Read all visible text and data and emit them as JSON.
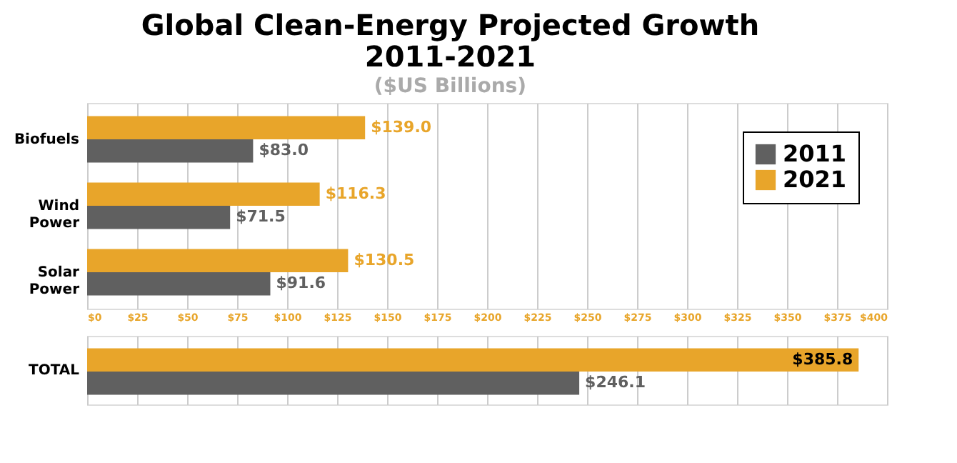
{
  "chart_data": [
    {
      "type": "bar",
      "orientation": "horizontal",
      "title": "Global Clean-Energy Projected Growth\n2011-2021",
      "subtitle": "($US Billions)",
      "categories": [
        "Biofuels",
        "Wind Power",
        "Solar Power"
      ],
      "series": [
        {
          "name": "2011",
          "color": "#606060",
          "values": [
            83.0,
            71.5,
            91.6
          ],
          "value_labels": [
            "$83.0",
            "$71.5",
            "$91.6"
          ]
        },
        {
          "name": "2021",
          "color": "#e8a52a",
          "values": [
            139.0,
            116.3,
            130.5
          ],
          "value_labels": [
            "$139.0",
            "$116.3",
            "$130.5"
          ]
        }
      ],
      "xlim": [
        0,
        400
      ],
      "xticks": [
        {
          "value": 0,
          "label": "$0"
        },
        {
          "value": 25,
          "label": "$25"
        },
        {
          "value": 50,
          "label": "$50"
        },
        {
          "value": 75,
          "label": "$75"
        },
        {
          "value": 100,
          "label": "$100"
        },
        {
          "value": 125,
          "label": "$125"
        },
        {
          "value": 150,
          "label": "$150"
        },
        {
          "value": 175,
          "label": "$175"
        },
        {
          "value": 200,
          "label": "$200"
        },
        {
          "value": 225,
          "label": "$225"
        },
        {
          "value": 250,
          "label": "$250"
        },
        {
          "value": 275,
          "label": "$275"
        },
        {
          "value": 300,
          "label": "$300"
        },
        {
          "value": 325,
          "label": "$325"
        },
        {
          "value": 350,
          "label": "$350"
        },
        {
          "value": 375,
          "label": "$375"
        },
        {
          "value": 400,
          "label": "$400"
        }
      ],
      "grid": "x",
      "legend": "top right"
    },
    {
      "type": "bar",
      "orientation": "horizontal",
      "categories": [
        "TOTAL"
      ],
      "series": [
        {
          "name": "2011",
          "color": "#606060",
          "values": [
            246.1
          ],
          "value_labels": [
            "$246.1"
          ]
        },
        {
          "name": "2021",
          "color": "#e8a52a",
          "values": [
            385.8
          ],
          "value_labels": [
            "$385.8"
          ]
        }
      ],
      "xlim": [
        0,
        400
      ],
      "xticks": [
        0,
        25,
        50,
        75,
        100,
        125,
        150,
        175,
        200,
        225,
        250,
        275,
        300,
        325,
        350,
        375,
        400
      ],
      "grid": "x",
      "legend": false,
      "tick_labels": "y"
    }
  ]
}
